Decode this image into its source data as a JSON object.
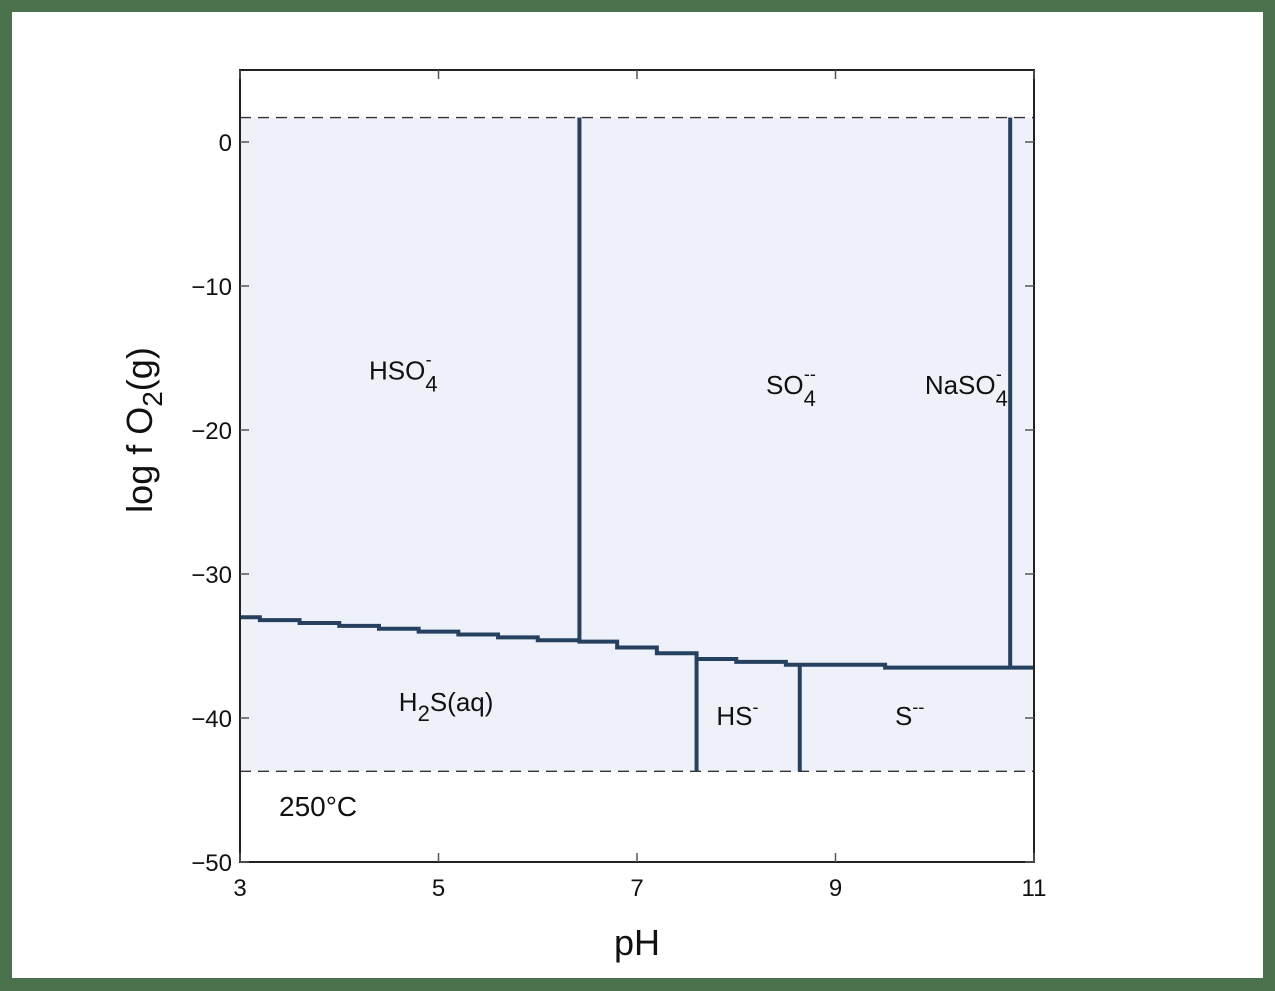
{
  "chart_data": {
    "type": "line",
    "title": "",
    "xlabel": "pH",
    "ylabel": "log f O2(g)",
    "ylabel_parts": {
      "main": "log f O",
      "sub": "2",
      "suffix": "(g)"
    },
    "xlim": [
      3,
      11
    ],
    "ylim": [
      -50,
      5
    ],
    "xticks": [
      3,
      5,
      7,
      9,
      11
    ],
    "yticks": [
      0,
      -10,
      -20,
      -30,
      -40,
      -50
    ],
    "xtick_labels": [
      "3",
      "5",
      "7",
      "9",
      "11"
    ],
    "ytick_labels": [
      "0",
      "−10",
      "−20",
      "−30",
      "−40",
      "−50"
    ],
    "grid": false,
    "annotation": "250°C",
    "stability_limits": {
      "upper_water_limit_logfO2": 1.7,
      "lower_water_limit_logfO2": -43.7,
      "style": "dashed"
    },
    "fill_color": "#eef1f9",
    "line_color": "#25415f",
    "fields": [
      {
        "name": "HSO4-",
        "base": "HSO",
        "sub": "4",
        "sup": "-",
        "x": 4.3,
        "y": -16.5
      },
      {
        "name": "SO4--",
        "base": "SO",
        "sub": "4",
        "sup": "--",
        "x": 8.3,
        "y": -17.5
      },
      {
        "name": "NaSO4-",
        "base": "NaSO",
        "sub": "4",
        "sup": "-",
        "x": 9.9,
        "y": -17.5
      },
      {
        "name": "H2S(aq)",
        "base": "H",
        "sub": "2",
        "suffix": "S(aq)",
        "x": 4.6,
        "y": -39.5
      },
      {
        "name": "HS-",
        "base": "HS",
        "sup": "-",
        "x": 7.8,
        "y": -40.5
      },
      {
        "name": "S--",
        "base": "S",
        "sup": "--",
        "x": 9.6,
        "y": -40.5
      }
    ],
    "boundaries": [
      {
        "between": [
          "HSO4-",
          "SO4--"
        ],
        "type": "vertical",
        "pH": 6.42,
        "from": -34.7,
        "to": 1.7
      },
      {
        "between": [
          "SO4--",
          "NaSO4-"
        ],
        "type": "vertical",
        "pH": 10.76,
        "from": -36.5,
        "to": 1.7
      },
      {
        "between": [
          "H2S(aq)",
          "HS-"
        ],
        "type": "vertical",
        "pH": 7.6,
        "from": -43.7,
        "to": -35.9
      },
      {
        "between": [
          "HS-",
          "S--"
        ],
        "type": "vertical",
        "pH": 8.64,
        "from": -43.7,
        "to": -36.3
      },
      {
        "between": [
          "sulfate",
          "sulfide"
        ],
        "type": "stepped",
        "x": [
          3.0,
          3.2,
          3.6,
          4.0,
          4.4,
          4.8,
          5.2,
          5.6,
          6.0,
          6.42,
          6.8,
          7.2,
          7.6,
          8.0,
          8.5,
          9.0,
          9.5,
          10.0,
          10.76,
          11.0
        ],
        "y": [
          -33.0,
          -33.2,
          -33.4,
          -33.6,
          -33.8,
          -34.0,
          -34.2,
          -34.4,
          -34.6,
          -34.7,
          -35.1,
          -35.5,
          -35.9,
          -36.1,
          -36.3,
          -36.3,
          -36.5,
          -36.5,
          -36.5,
          -36.5
        ]
      }
    ]
  }
}
